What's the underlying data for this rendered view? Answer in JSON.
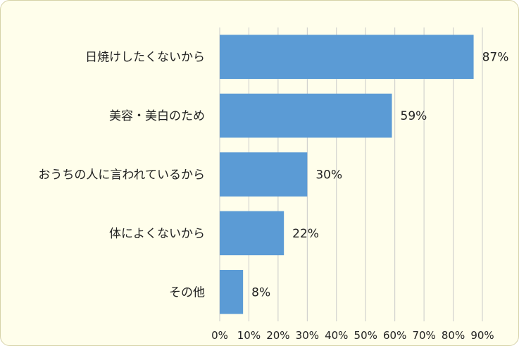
{
  "chart_data": {
    "type": "bar",
    "orientation": "horizontal",
    "categories": [
      "日焼けしたくないから",
      "美容・美白のため",
      "おうちの人に言われているから",
      "体によくないから",
      "その他"
    ],
    "values": [
      87,
      59,
      30,
      22,
      8
    ],
    "data_labels": [
      "87%",
      "59%",
      "30%",
      "22%",
      "8%"
    ],
    "xlim": [
      0,
      90
    ],
    "xticks": [
      0,
      10,
      20,
      30,
      40,
      50,
      60,
      70,
      80,
      90
    ],
    "xtick_labels": [
      "0%",
      "10%",
      "20%",
      "30%",
      "40%",
      "50%",
      "60%",
      "70%",
      "80%",
      "90%"
    ],
    "grid": "vertical",
    "legend": "none",
    "colors": {
      "bar": "#5b9bd5",
      "background": "#fffeeb",
      "grid": "#c9c9c9",
      "border": "#d6d2a8"
    }
  }
}
